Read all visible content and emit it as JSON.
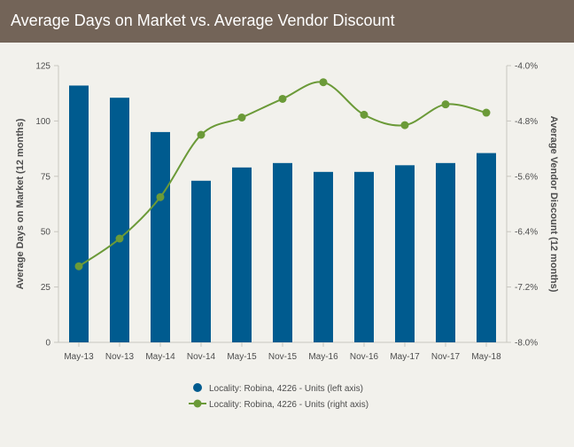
{
  "header": {
    "title": "Average Days on Market vs. Average Vendor Discount"
  },
  "colors": {
    "header_bg": "#736458",
    "bar": "#005b8f",
    "line": "#6b9a38",
    "background": "#f2f1ec"
  },
  "chart_data": {
    "type": "bar",
    "categories": [
      "May-13",
      "Nov-13",
      "May-14",
      "Nov-14",
      "May-15",
      "Nov-15",
      "May-16",
      "Nov-16",
      "May-17",
      "Nov-17",
      "May-18"
    ],
    "series": [
      {
        "name": "Locality: Robina, 4226 - Units (left axis)",
        "type": "bar",
        "axis": "left",
        "values": [
          116,
          110.5,
          95,
          73,
          79,
          81,
          77,
          77,
          80,
          81,
          85.5
        ]
      },
      {
        "name": "Locality: Robina, 4226 - Units (right axis)",
        "type": "line",
        "axis": "right",
        "values": [
          -6.9,
          -6.5,
          -5.9,
          -5.0,
          -4.75,
          -4.48,
          -4.24,
          -4.71,
          -4.86,
          -4.56,
          -4.68
        ]
      }
    ],
    "ylabel": "Average Days on Market (12 months)",
    "ylim": [
      0,
      125
    ],
    "yticks": [
      0,
      25,
      50,
      75,
      100,
      125
    ],
    "y2label": "Average Vendor Discount (12 months)",
    "y2lim": [
      -8.0,
      -4.0
    ],
    "y2ticks": [
      "-8.0%",
      "-7.2%",
      "-6.4%",
      "-5.6%",
      "-4.8%",
      "-4.0%"
    ],
    "grid": false,
    "legend_position": "bottom"
  }
}
